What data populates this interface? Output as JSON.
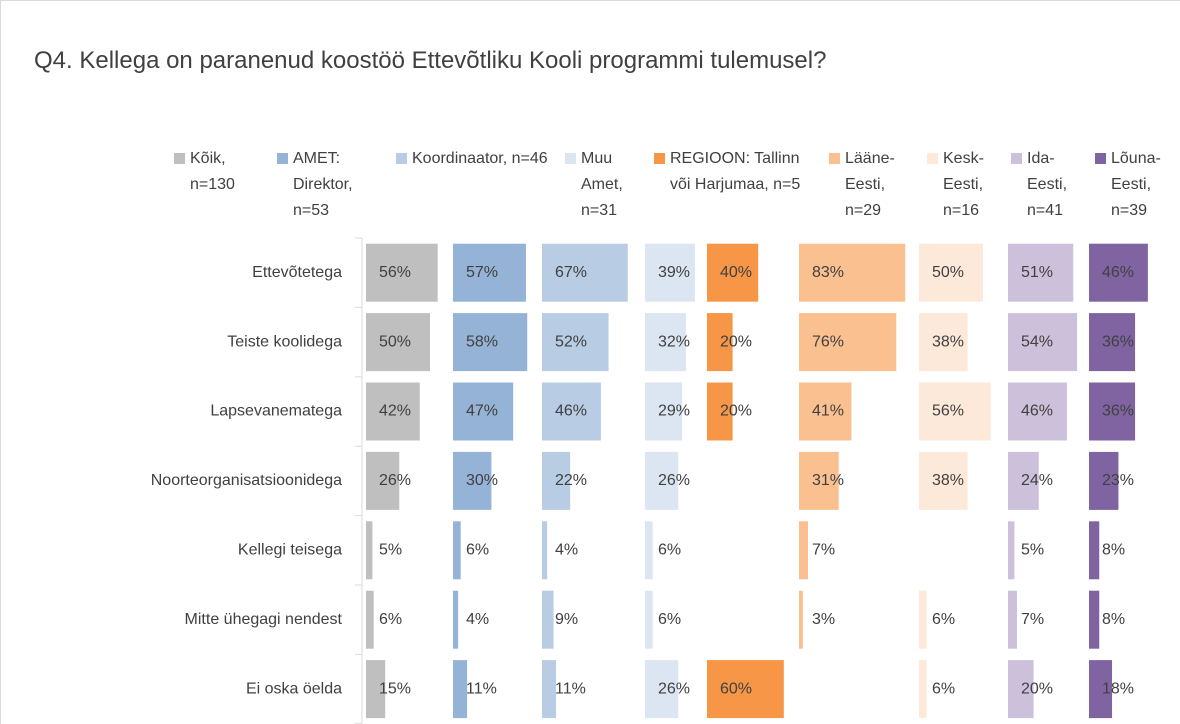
{
  "chart_data": {
    "type": "bar",
    "title": "Q4. Kellega on paranenud koostöö Ettevõtliku Kooli programmi tulemusel?",
    "categories": [
      "Ettevõtetega",
      "Teiste koolidega",
      "Lapsevanematega",
      "Noorteorganisatsioonidega",
      "Kellegi teisega",
      "Mitte ühegagi nendest",
      "Ei oska öelda"
    ],
    "series": [
      {
        "name": "Kõik, n=130",
        "color": "#bfbfbf",
        "values": [
          56,
          50,
          42,
          26,
          5,
          6,
          15
        ],
        "value_labels": [
          "56%",
          "50%",
          "42%",
          "26%",
          "5%",
          "6%",
          "15%"
        ]
      },
      {
        "name": "AMET: Direktor, n=53",
        "color": "#95b3d7",
        "values": [
          57,
          58,
          47,
          30,
          6,
          4,
          11
        ],
        "value_labels": [
          "57%",
          "58%",
          "47%",
          "30%",
          "6%",
          "4%",
          "11%"
        ]
      },
      {
        "name": "Koordinaator, n=46",
        "color": "#b8cce4",
        "values": [
          67,
          52,
          46,
          22,
          4,
          9,
          11
        ],
        "value_labels": [
          "67%",
          "52%",
          "46%",
          "22%",
          "4%",
          "9%",
          "11%"
        ]
      },
      {
        "name": "Muu Amet, n=31",
        "color": "#dce6f2",
        "values": [
          39,
          32,
          29,
          26,
          6,
          6,
          26
        ],
        "value_labels": [
          "39%",
          "32%",
          "29%",
          "26%",
          "6%",
          "6%",
          "26%"
        ]
      },
      {
        "name": "REGIOON: Tallinn või Harjumaa, n=5",
        "color": "#f79646",
        "values": [
          40,
          20,
          20,
          null,
          null,
          null,
          60
        ],
        "value_labels": [
          "40%",
          "20%",
          "20%",
          null,
          null,
          null,
          "60%"
        ]
      },
      {
        "name": "Lääne-Eesti, n=29",
        "color": "#fac090",
        "values": [
          83,
          76,
          41,
          31,
          7,
          3,
          null
        ],
        "value_labels": [
          "83%",
          "76%",
          "41%",
          "31%",
          "7%",
          "3%",
          null
        ]
      },
      {
        "name": "Kesk-Eesti, n=16",
        "color": "#fde9d9",
        "values": [
          50,
          38,
          56,
          38,
          null,
          6,
          6
        ],
        "value_labels": [
          "50%",
          "38%",
          "56%",
          "38%",
          null,
          "6%",
          "6%"
        ]
      },
      {
        "name": "Ida-Eesti, n=41",
        "color": "#ccc0da",
        "values": [
          51,
          54,
          46,
          24,
          5,
          7,
          20
        ],
        "value_labels": [
          "51%",
          "54%",
          "46%",
          "24%",
          "5%",
          "7%",
          "20%"
        ]
      },
      {
        "name": "Lõuna-Eesti, n=39",
        "color": "#8064a2",
        "values": [
          46,
          36,
          36,
          23,
          8,
          8,
          18
        ],
        "value_labels": [
          "46%",
          "36%",
          "36%",
          "23%",
          "8%",
          "8%",
          "18%"
        ]
      }
    ]
  }
}
